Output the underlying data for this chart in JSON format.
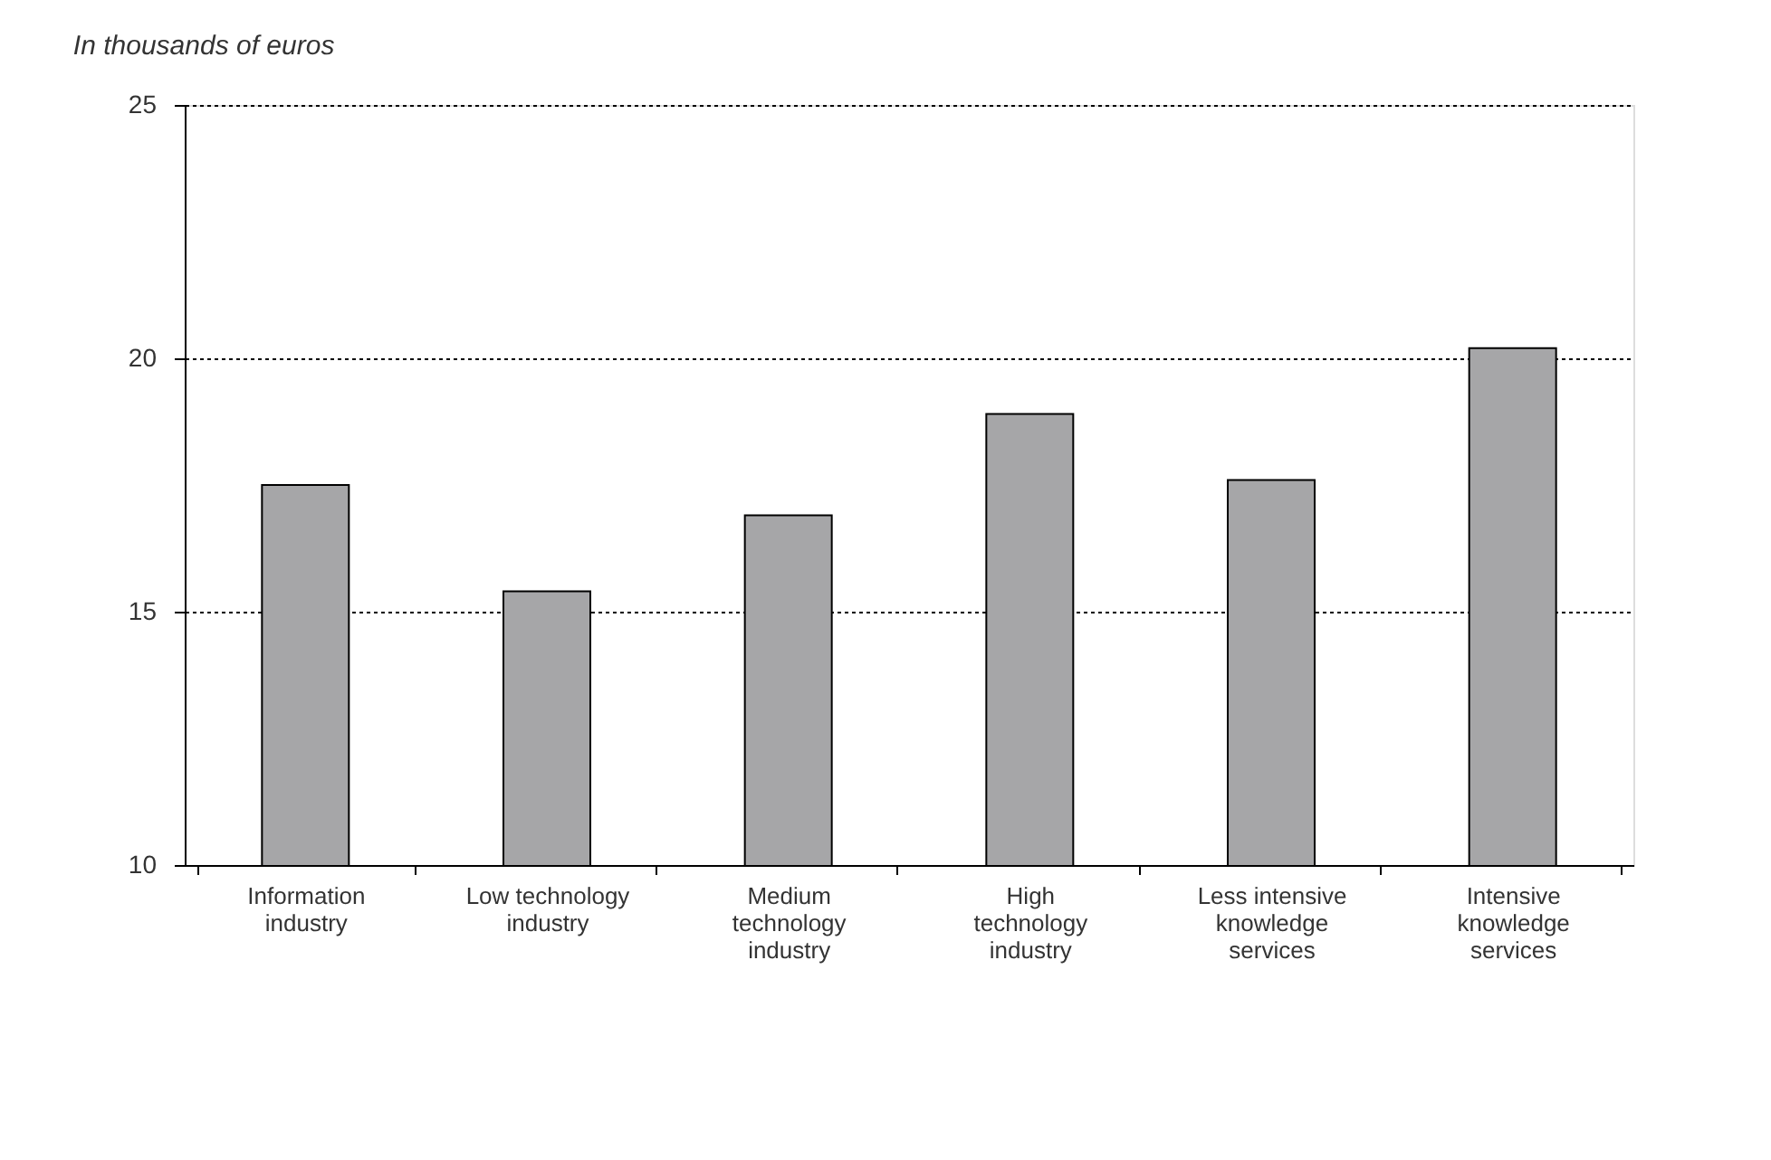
{
  "chart_data": {
    "type": "bar",
    "ylabel": "In thousands of euros",
    "categories": [
      "Information industry",
      "Low technology industry",
      "Medium technology industry",
      "High technology industry",
      "Less intensive knowledge services",
      "Intensive knowledge services"
    ],
    "values": [
      17.5,
      15.4,
      16.9,
      18.9,
      17.6,
      20.2
    ],
    "color": "#a6a6a8",
    "ylim": [
      10,
      25
    ],
    "yticks": [
      10,
      15,
      20,
      25
    ],
    "grid": "y"
  }
}
